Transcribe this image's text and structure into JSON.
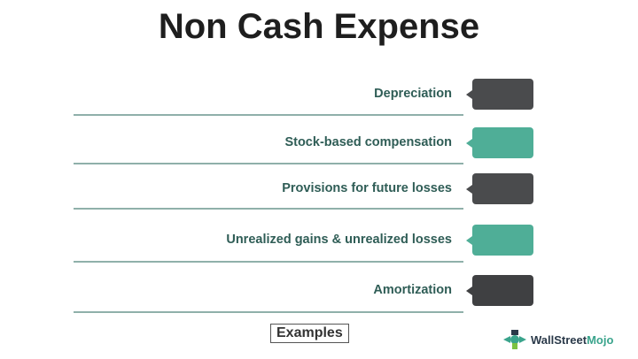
{
  "title": "Non Cash Expense",
  "items": [
    {
      "label": "Depreciation",
      "color": "#4a4b4d"
    },
    {
      "label": "Stock-based compensation",
      "color": "#4fae97"
    },
    {
      "label": "Provisions for future losses",
      "color": "#4a4b4d"
    },
    {
      "label": "Unrealized gains & unrealized losses",
      "color": "#4fae97"
    },
    {
      "label": "Amortization",
      "color": "#3f4042"
    }
  ],
  "footer_label": "Examples",
  "logo": {
    "part1": "WallStreet",
    "part2": "Mojo"
  }
}
